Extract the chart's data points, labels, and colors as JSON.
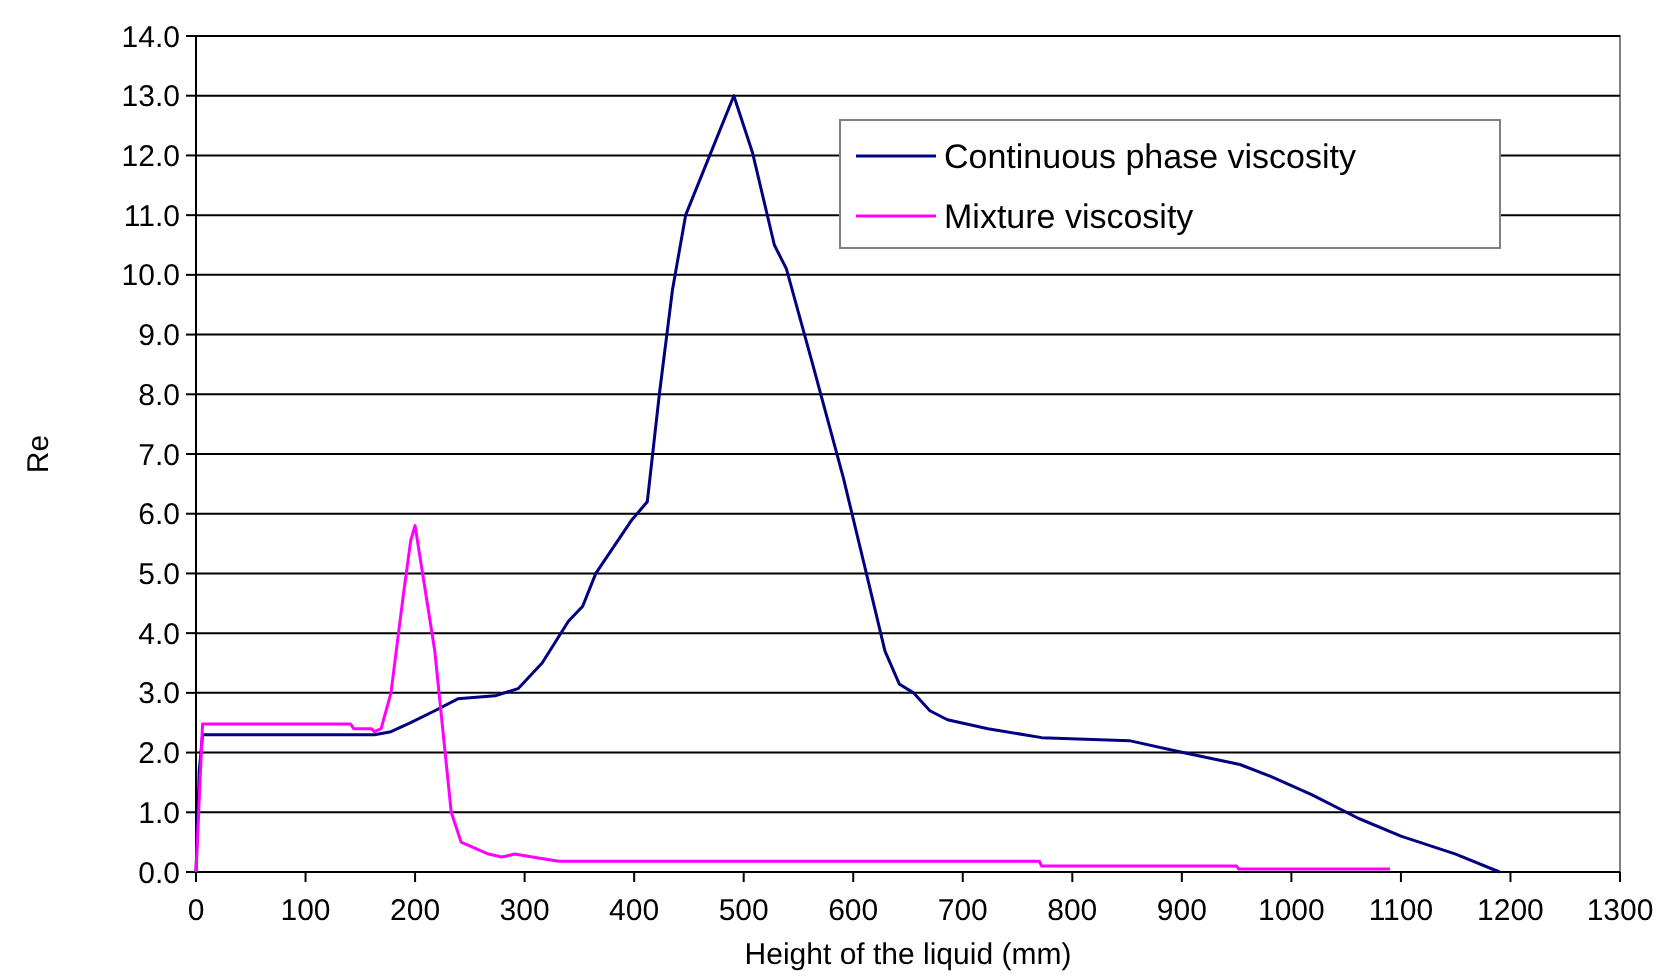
{
  "chart_data": {
    "type": "line",
    "xlabel": "Height of the liquid (mm)",
    "ylabel": "Re",
    "xlim": [
      0,
      1300
    ],
    "ylim": [
      0,
      14
    ],
    "xticks": [
      0,
      100,
      200,
      300,
      400,
      500,
      600,
      700,
      800,
      900,
      1000,
      1100,
      1200,
      1300
    ],
    "yticks": [
      {
        "value": 0,
        "label": "0.0"
      },
      {
        "value": 1,
        "label": "1.0"
      },
      {
        "value": 2,
        "label": "2.0"
      },
      {
        "value": 3,
        "label": "3.0"
      },
      {
        "value": 4,
        "label": "4.0"
      },
      {
        "value": 5,
        "label": "5.0"
      },
      {
        "value": 6,
        "label": "6.0"
      },
      {
        "value": 7,
        "label": "7.0"
      },
      {
        "value": 8,
        "label": "8.0"
      },
      {
        "value": 9,
        "label": "9.0"
      },
      {
        "value": 10,
        "label": "10.0"
      },
      {
        "value": 11,
        "label": "11.0"
      },
      {
        "value": 12,
        "label": "12.0"
      },
      {
        "value": 13,
        "label": "13.0"
      },
      {
        "value": 14,
        "label": "14.0"
      }
    ],
    "grid": "y",
    "legend": "top right",
    "marker": "none",
    "line_style": "solid",
    "series": [
      {
        "name": "Continuous phase viscosity",
        "color": "#000080",
        "x": [
          0,
          3,
          6,
          163,
          178,
          196,
          218,
          239,
          273,
          294,
          316,
          340,
          353,
          365,
          398,
          412,
          423,
          435,
          447,
          469,
          491,
          508,
          528,
          539,
          563,
          591,
          612,
          629,
          642,
          655,
          670,
          686,
          723,
          772,
          852,
          901,
          953,
          981,
          1018,
          1061,
          1100,
          1150,
          1190
        ],
        "values": [
          0,
          1.7,
          2.3,
          2.3,
          2.35,
          2.5,
          2.7,
          2.9,
          2.95,
          3.07,
          3.5,
          4.2,
          4.45,
          5.0,
          5.9,
          6.2,
          8.0,
          9.75,
          11.0,
          12.0,
          13.0,
          12.05,
          10.5,
          10.1,
          8.5,
          6.6,
          5.0,
          3.7,
          3.15,
          3.0,
          2.7,
          2.55,
          2.4,
          2.25,
          2.2,
          2.0,
          1.8,
          1.6,
          1.3,
          0.9,
          0.6,
          0.3,
          0
        ]
      },
      {
        "name": "Mixture viscosity",
        "color": "#ff00ff",
        "x": [
          0,
          6,
          141,
          144,
          160,
          163,
          169,
          178,
          189,
          196,
          200,
          206,
          218,
          233,
          242,
          267,
          279,
          291,
          307,
          331,
          770,
          772,
          950,
          952,
          1090
        ],
        "values": [
          0,
          2.48,
          2.48,
          2.4,
          2.4,
          2.35,
          2.4,
          3.0,
          4.6,
          5.55,
          5.8,
          5.1,
          3.7,
          1.0,
          0.5,
          0.3,
          0.25,
          0.3,
          0.25,
          0.18,
          0.18,
          0.1,
          0.1,
          0.05,
          0.05
        ]
      }
    ]
  }
}
